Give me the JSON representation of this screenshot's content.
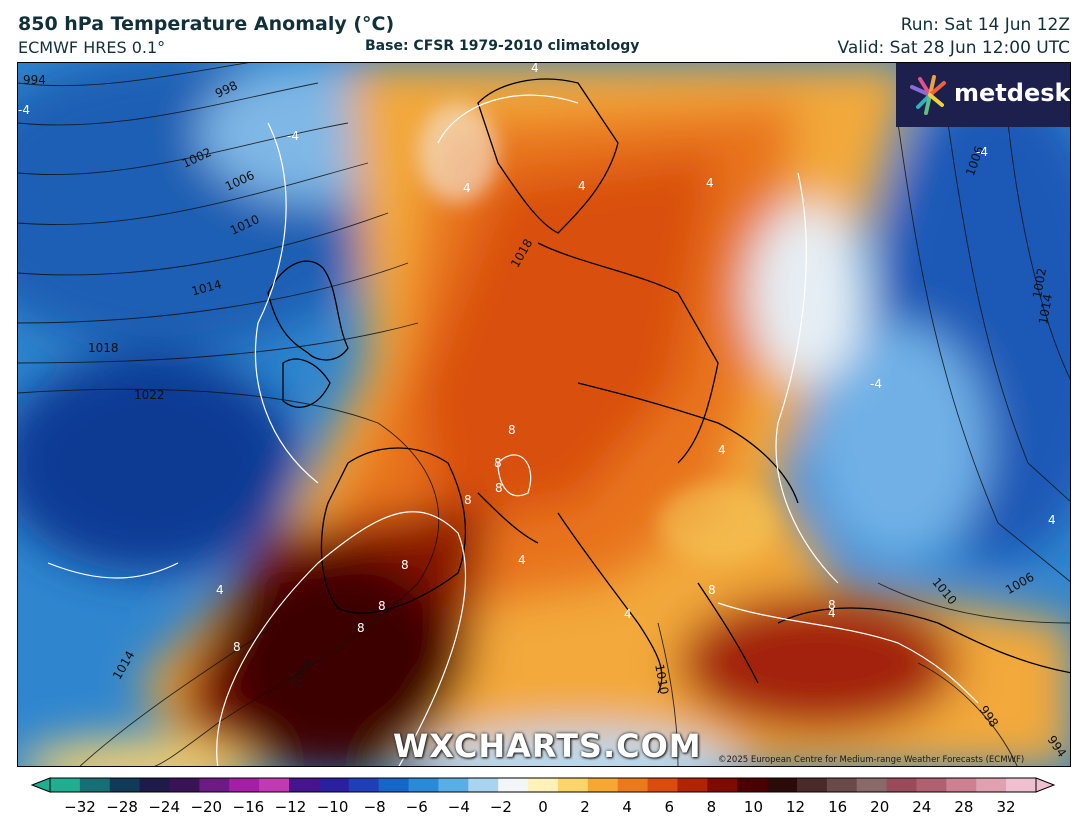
{
  "header": {
    "title": "850 hPa Temperature Anomaly (°C)",
    "subtitle": "ECMWF HRES 0.1°",
    "base": "Base: CFSR 1979-2010 climatology",
    "run": "Run: Sat 14 Jun 12Z",
    "valid": "Valid: Sat 28 Jun 12:00 UTC"
  },
  "logo": {
    "text": "metdesk"
  },
  "watermark": "WXCHARTS.COM",
  "copyright": "©2025 European Centre for Medium-range Weather Forecasts (ECMWF)",
  "isobars": [
    {
      "label": "994"
    },
    {
      "label": "998"
    },
    {
      "label": "1002"
    },
    {
      "label": "1006"
    },
    {
      "label": "1010"
    },
    {
      "label": "1014"
    },
    {
      "label": "1018"
    },
    {
      "label": "1022"
    },
    {
      "label": "1018"
    },
    {
      "label": "1010"
    },
    {
      "label": "1014"
    },
    {
      "label": "1006"
    },
    {
      "label": "1002"
    },
    {
      "label": "1010"
    },
    {
      "label": "1006"
    },
    {
      "label": "998"
    },
    {
      "label": "994"
    },
    {
      "label": "1014"
    },
    {
      "label": "1014"
    }
  ],
  "anomaly_labels": [
    "4",
    "-4",
    "4",
    "4",
    "4",
    "-4",
    "8",
    "8",
    "8",
    "8",
    "8",
    "8",
    "8",
    "8",
    "8",
    "8",
    "4",
    "4",
    "4",
    "-4",
    "4",
    "4",
    "4",
    "-4"
  ],
  "colorbar": {
    "ticks": [
      "−32",
      "−28",
      "−24",
      "−20",
      "−16",
      "−12",
      "−10",
      "−8",
      "−6",
      "−4",
      "−2",
      "0",
      "2",
      "4",
      "6",
      "8",
      "10",
      "12",
      "16",
      "20",
      "24",
      "28",
      "32"
    ],
    "colors": [
      "#1fae8f",
      "#176f76",
      "#103a58",
      "#1e1a4a",
      "#3a1357",
      "#6e1a85",
      "#a41fa6",
      "#c23ab3",
      "#46148c",
      "#2a1fa0",
      "#1f3fb8",
      "#1566c8",
      "#2a8ad8",
      "#5aaee6",
      "#a8d4f0",
      "#f2f6f8",
      "#fff2b8",
      "#fbd46a",
      "#f5a832",
      "#ec7a1a",
      "#dc4b0e",
      "#b22205",
      "#7e0a02",
      "#4a0000",
      "#2b0a08",
      "#4a2a28",
      "#6a4a48",
      "#8a6a68",
      "#9a4a5a",
      "#b06070",
      "#cc8090",
      "#e0a0b0",
      "#f0c0d0"
    ]
  }
}
